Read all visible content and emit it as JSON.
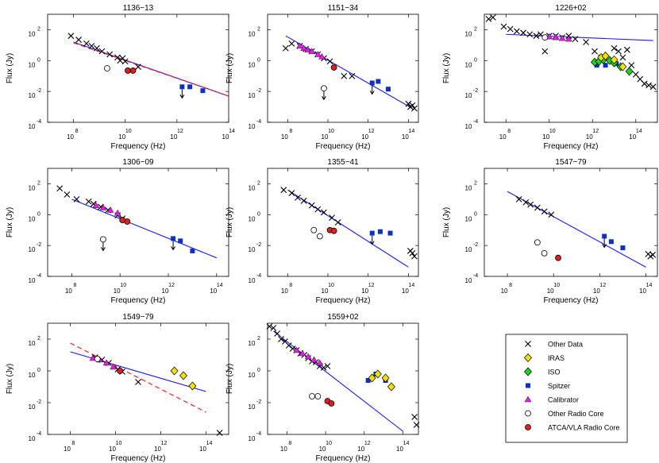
{
  "figure": {
    "xlabel": "Frequency (Hz)",
    "ylabel": "Flux (Jy)",
    "tick_base": "10",
    "colors": {
      "fit": "#1a1aff",
      "dashed": "#ff2020",
      "iras": "#f0e000",
      "iso": "#1fd21f",
      "spitzer": "#1030c0",
      "calibrator": "#e21ee2",
      "core": "#e02020"
    }
  },
  "legend": {
    "items": [
      {
        "label": "Other Data",
        "marker": "cross"
      },
      {
        "label": "IRAS",
        "marker": "diamond-yellow"
      },
      {
        "label": "ISO",
        "marker": "diamond-green"
      },
      {
        "label": "Spitzer",
        "marker": "square-blue"
      },
      {
        "label": "Calibrator",
        "marker": "triangle-magenta"
      },
      {
        "label": "Other Radio Core",
        "marker": "circle-open"
      },
      {
        "label": "ATCA/VLA Radio Core",
        "marker": "circle-red"
      }
    ]
  },
  "chart_data": [
    {
      "type": "scatter",
      "title": "1136−13",
      "xlabel": "Frequency (Hz)",
      "ylabel": "Flux (Jy)",
      "scale": "log10",
      "xlim": [
        7,
        14
      ],
      "ylim": [
        -4,
        3
      ],
      "xticks": [
        8,
        10,
        12,
        14
      ],
      "yticks": [
        -4,
        -2,
        0,
        2
      ],
      "fit": [
        [
          8.0,
          1.2
        ],
        [
          14.0,
          -2.3
        ]
      ],
      "dashed_fit": [
        [
          8.0,
          1.15
        ],
        [
          14.0,
          -2.3
        ]
      ],
      "other": [
        [
          7.9,
          1.6
        ],
        [
          8.2,
          1.35
        ],
        [
          8.5,
          1.1
        ],
        [
          8.7,
          0.95
        ],
        [
          8.9,
          0.8
        ],
        [
          9.1,
          0.6
        ],
        [
          9.4,
          0.4
        ],
        [
          9.7,
          0.2
        ],
        [
          9.8,
          0.0
        ],
        [
          9.9,
          0.15
        ],
        [
          10.0,
          -0.05
        ],
        [
          10.5,
          -0.4
        ]
      ],
      "spitzer": [
        [
          12.2,
          -1.7
        ],
        [
          12.5,
          -1.7
        ],
        [
          13.0,
          -1.95
        ]
      ],
      "upper_limits": [
        [
          12.2,
          -1.7
        ]
      ],
      "other_core": [
        [
          9.3,
          -0.5
        ]
      ],
      "core": [
        [
          10.1,
          -0.65
        ],
        [
          10.3,
          -0.65
        ]
      ]
    },
    {
      "type": "scatter",
      "title": "1151−34",
      "xlabel": "Frequency (Hz)",
      "ylabel": "Flux (Jy)",
      "scale": "log10",
      "xlim": [
        7,
        14.5
      ],
      "ylim": [
        -4,
        3
      ],
      "xticks": [
        8,
        10,
        12,
        14
      ],
      "yticks": [
        -4,
        -2,
        0,
        2
      ],
      "fit": [
        [
          7.9,
          1.6
        ],
        [
          14.2,
          -3.1
        ]
      ],
      "other": [
        [
          7.9,
          0.8
        ],
        [
          8.2,
          1.1
        ],
        [
          8.6,
          0.95
        ],
        [
          8.9,
          0.75
        ],
        [
          9.2,
          0.6
        ],
        [
          9.5,
          0.4
        ],
        [
          9.8,
          0.15
        ],
        [
          10.1,
          -0.05
        ],
        [
          10.8,
          -1.0
        ],
        [
          11.2,
          -1.0
        ],
        [
          14.0,
          -2.8
        ],
        [
          14.1,
          -3.0
        ],
        [
          14.2,
          -2.9
        ],
        [
          14.3,
          -3.1
        ]
      ],
      "calibrator": [
        [
          8.6,
          0.95
        ],
        [
          8.8,
          0.8
        ],
        [
          9.0,
          0.7
        ],
        [
          9.2,
          0.6
        ],
        [
          9.5,
          0.4
        ],
        [
          9.7,
          0.25
        ]
      ],
      "spitzer": [
        [
          12.2,
          -1.45
        ],
        [
          12.5,
          -1.35
        ],
        [
          13.0,
          -1.85
        ]
      ],
      "upper_limits": [
        [
          12.2,
          -1.45
        ]
      ],
      "other_core": [
        [
          9.8,
          -1.8
        ]
      ],
      "other_core_limits": [
        [
          9.8,
          -1.8
        ]
      ],
      "core": [
        [
          10.3,
          -0.45
        ]
      ]
    },
    {
      "type": "scatter",
      "title": "1226+02",
      "xlabel": "Frequency (Hz)",
      "ylabel": "Flux (Jy)",
      "scale": "log10",
      "xlim": [
        7,
        15
      ],
      "ylim": [
        -4,
        3
      ],
      "xticks": [
        8,
        10,
        12,
        14
      ],
      "yticks": [
        -4,
        -2,
        0,
        2
      ],
      "fit": [
        [
          8.0,
          1.7
        ],
        [
          14.8,
          1.3
        ]
      ],
      "other": [
        [
          7.2,
          2.7
        ],
        [
          7.4,
          2.8
        ],
        [
          7.9,
          2.2
        ],
        [
          8.2,
          2.05
        ],
        [
          8.5,
          1.9
        ],
        [
          8.8,
          1.8
        ],
        [
          9.1,
          1.7
        ],
        [
          9.4,
          1.6
        ],
        [
          9.6,
          1.7
        ],
        [
          9.8,
          0.6
        ],
        [
          10.0,
          1.6
        ],
        [
          10.3,
          1.6
        ],
        [
          10.6,
          1.5
        ],
        [
          10.9,
          1.6
        ],
        [
          11.2,
          1.4
        ],
        [
          11.7,
          1.2
        ],
        [
          12.1,
          0.6
        ],
        [
          12.4,
          0.2
        ],
        [
          12.6,
          0.1
        ],
        [
          13.0,
          0.8
        ],
        [
          13.2,
          0.6
        ],
        [
          13.4,
          0.2
        ],
        [
          13.6,
          0.7
        ],
        [
          13.8,
          -0.3
        ],
        [
          14.0,
          -0.9
        ],
        [
          14.2,
          -1.2
        ],
        [
          14.4,
          -1.5
        ],
        [
          14.6,
          -1.6
        ],
        [
          14.8,
          -1.7
        ]
      ],
      "calibrator": [
        [
          10.0,
          1.55
        ],
        [
          10.3,
          1.5
        ],
        [
          10.6,
          1.45
        ],
        [
          10.9,
          1.4
        ]
      ],
      "spitzer": [
        [
          12.2,
          -0.3
        ],
        [
          12.6,
          -0.3
        ],
        [
          13.1,
          -0.2
        ]
      ],
      "iras": [
        [
          12.4,
          0.2
        ],
        [
          12.6,
          0.3
        ],
        [
          13.0,
          0.05
        ],
        [
          13.4,
          -0.4
        ]
      ],
      "iso": [
        [
          12.1,
          -0.1
        ],
        [
          12.3,
          -0.05
        ],
        [
          12.5,
          0.05
        ],
        [
          12.8,
          0.0
        ],
        [
          13.0,
          -0.15
        ],
        [
          13.3,
          -0.4
        ],
        [
          13.7,
          -0.7
        ]
      ],
      "other_core": [
        [
          9.8,
          1.5
        ]
      ]
    },
    {
      "type": "scatter",
      "title": "1306−09",
      "xlabel": "Frequency (Hz)",
      "ylabel": "Flux (Jy)",
      "scale": "log10",
      "xlim": [
        7,
        14.5
      ],
      "ylim": [
        -4,
        3
      ],
      "xticks": [
        8,
        10,
        12,
        14
      ],
      "yticks": [
        -4,
        -2,
        0,
        2
      ],
      "fit": [
        [
          8.0,
          1.0
        ],
        [
          14.0,
          -2.8
        ]
      ],
      "other": [
        [
          7.5,
          1.7
        ],
        [
          7.8,
          1.3
        ],
        [
          8.2,
          1.0
        ],
        [
          8.7,
          0.85
        ],
        [
          8.9,
          0.7
        ],
        [
          9.2,
          0.5
        ],
        [
          9.5,
          0.3
        ],
        [
          9.9,
          -0.05
        ],
        [
          10.1,
          -0.25
        ]
      ],
      "calibrator": [
        [
          9.0,
          0.6
        ],
        [
          9.3,
          0.45
        ],
        [
          9.6,
          0.3
        ],
        [
          9.9,
          0.1
        ]
      ],
      "spitzer": [
        [
          12.2,
          -1.55
        ],
        [
          12.5,
          -1.7
        ],
        [
          13.0,
          -2.35
        ]
      ],
      "upper_limits": [
        [
          12.2,
          -1.55
        ]
      ],
      "other_core": [
        [
          9.3,
          -1.6
        ]
      ],
      "other_core_limits": [
        [
          9.3,
          -1.6
        ]
      ],
      "core": [
        [
          10.1,
          -0.35
        ],
        [
          10.3,
          -0.45
        ]
      ]
    },
    {
      "type": "scatter",
      "title": "1355−41",
      "xlabel": "Frequency (Hz)",
      "ylabel": "Flux (Jy)",
      "scale": "log10",
      "xlim": [
        7,
        14.5
      ],
      "ylim": [
        -4,
        3
      ],
      "xticks": [
        8,
        10,
        12,
        14
      ],
      "yticks": [
        -4,
        -2,
        0,
        2
      ],
      "fit": [
        [
          8.0,
          1.6
        ],
        [
          14.0,
          -3.4
        ]
      ],
      "other": [
        [
          7.8,
          1.6
        ],
        [
          8.2,
          1.4
        ],
        [
          8.5,
          1.1
        ],
        [
          8.8,
          0.9
        ],
        [
          9.2,
          0.6
        ],
        [
          9.5,
          0.35
        ],
        [
          9.8,
          0.15
        ],
        [
          10.2,
          -0.2
        ],
        [
          10.5,
          -0.5
        ],
        [
          14.1,
          -2.35
        ],
        [
          14.2,
          -2.5
        ],
        [
          14.3,
          -2.7
        ]
      ],
      "spitzer": [
        [
          12.2,
          -1.2
        ],
        [
          12.6,
          -1.1
        ],
        [
          13.1,
          -1.2
        ]
      ],
      "upper_limits": [
        [
          12.2,
          -1.2
        ]
      ],
      "other_core": [
        [
          9.3,
          -1.0
        ],
        [
          9.6,
          -1.4
        ]
      ],
      "core": [
        [
          10.1,
          -1.0
        ],
        [
          10.3,
          -1.05
        ]
      ]
    },
    {
      "type": "scatter",
      "title": "1547−79",
      "xlabel": "Frequency (Hz)",
      "ylabel": "Flux (Jy)",
      "scale": "log10",
      "xlim": [
        7,
        14.5
      ],
      "ylim": [
        -4,
        3
      ],
      "xticks": [
        8,
        10,
        12,
        14
      ],
      "yticks": [
        -4,
        -2,
        0,
        2
      ],
      "fit": [
        [
          8.0,
          1.5
        ],
        [
          14.0,
          -3.4
        ]
      ],
      "other": [
        [
          8.5,
          1.0
        ],
        [
          8.8,
          0.8
        ],
        [
          9.0,
          0.65
        ],
        [
          9.3,
          0.45
        ],
        [
          9.6,
          0.2
        ],
        [
          9.9,
          0.0
        ],
        [
          14.1,
          -2.55
        ],
        [
          14.2,
          -2.7
        ],
        [
          14.3,
          -2.6
        ]
      ],
      "spitzer": [
        [
          12.2,
          -1.4
        ],
        [
          12.5,
          -1.75
        ],
        [
          13.0,
          -2.15
        ]
      ],
      "upper_limits": [
        [
          12.2,
          -1.4
        ]
      ],
      "other_core": [
        [
          9.3,
          -1.8
        ],
        [
          9.6,
          -2.5
        ]
      ],
      "core": [
        [
          10.2,
          -2.8
        ]
      ]
    },
    {
      "type": "scatter",
      "title": "1549−79",
      "xlabel": "Frequency (Hz)",
      "ylabel": "Flux (Jy)",
      "scale": "log10",
      "xlim": [
        7,
        15
      ],
      "ylim": [
        -4,
        3
      ],
      "xticks": [
        8,
        10,
        12,
        14
      ],
      "yticks": [
        -4,
        -2,
        0,
        2
      ],
      "fit": [
        [
          8.0,
          1.2
        ],
        [
          14.0,
          -1.3
        ]
      ],
      "dashed_fit": [
        [
          8.0,
          1.75
        ],
        [
          14.0,
          -2.6
        ]
      ],
      "other": [
        [
          9.1,
          0.85
        ],
        [
          9.4,
          0.7
        ],
        [
          9.7,
          0.5
        ],
        [
          10.1,
          0.1
        ],
        [
          10.3,
          -0.05
        ],
        [
          11.0,
          -0.7
        ],
        [
          14.6,
          -3.9
        ]
      ],
      "calibrator": [
        [
          9.0,
          0.8
        ],
        [
          9.3,
          0.7
        ],
        [
          9.6,
          0.5
        ],
        [
          9.9,
          0.25
        ]
      ],
      "iras": [
        [
          12.6,
          0.0
        ],
        [
          13.0,
          -0.3
        ],
        [
          13.4,
          -0.95
        ]
      ],
      "other_core": [
        [
          9.2,
          0.75
        ]
      ],
      "core": [
        [
          10.2,
          0.0
        ]
      ]
    },
    {
      "type": "scatter",
      "title": "1559+02",
      "xlabel": "Frequency (Hz)",
      "ylabel": "Flux (Jy)",
      "scale": "log10",
      "xlim": [
        7,
        14.8
      ],
      "ylim": [
        -4,
        3
      ],
      "xticks": [
        8,
        10,
        12,
        14
      ],
      "yticks": [
        -4,
        -2,
        0,
        2
      ],
      "fit": [
        [
          7.3,
          2.5
        ],
        [
          14.0,
          -3.8
        ]
      ],
      "other": [
        [
          7.1,
          2.8
        ],
        [
          7.3,
          2.7
        ],
        [
          7.5,
          2.35
        ],
        [
          7.7,
          2.0
        ],
        [
          7.9,
          1.85
        ],
        [
          8.1,
          1.6
        ],
        [
          8.3,
          1.4
        ],
        [
          8.5,
          1.3
        ],
        [
          8.7,
          1.1
        ],
        [
          8.9,
          1.0
        ],
        [
          9.1,
          0.8
        ],
        [
          9.3,
          0.6
        ],
        [
          9.5,
          0.55
        ],
        [
          9.7,
          0.3
        ],
        [
          9.9,
          0.2
        ],
        [
          10.1,
          0.3
        ],
        [
          14.6,
          -2.9
        ],
        [
          14.7,
          -3.4
        ]
      ],
      "calibrator": [
        [
          8.5,
          1.3
        ],
        [
          8.8,
          1.1
        ],
        [
          9.1,
          0.9
        ],
        [
          9.4,
          0.7
        ],
        [
          9.7,
          0.5
        ]
      ],
      "spitzer": [
        [
          12.2,
          -0.6
        ],
        [
          12.6,
          -0.2
        ],
        [
          13.1,
          -0.6
        ]
      ],
      "iras": [
        [
          12.4,
          -0.45
        ],
        [
          12.7,
          -0.2
        ],
        [
          13.1,
          -0.45
        ],
        [
          13.4,
          -1.0
        ]
      ],
      "other_core": [
        [
          9.3,
          -1.6
        ],
        [
          9.6,
          -1.6
        ]
      ],
      "core": [
        [
          10.1,
          -1.9
        ],
        [
          10.3,
          -2.05
        ]
      ]
    }
  ]
}
